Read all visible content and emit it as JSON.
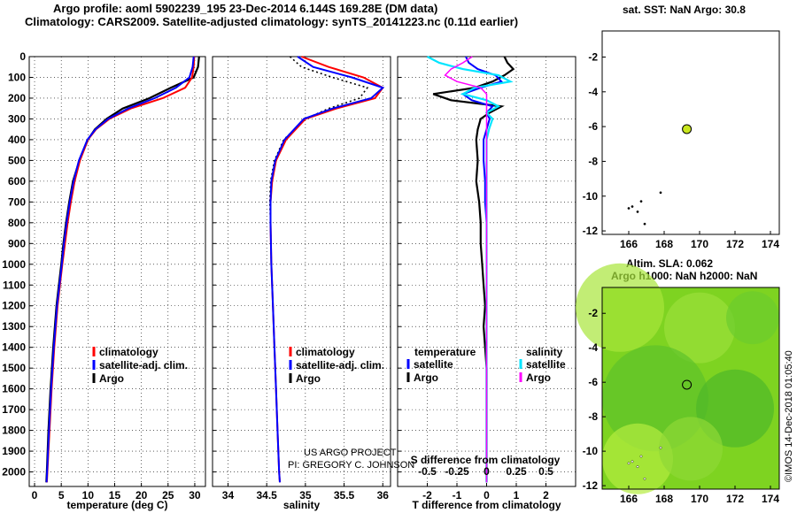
{
  "header": {
    "title_line1": "Argo profile: aoml 5902239_195 23-Dec-2014 6.144S 169.28E (DM data)",
    "title_line2": "Climatology: CARS2009. Satellite-adjusted climatology: synTS_20141223.nc (0.11d earlier)"
  },
  "map_top": {
    "title": "sat. SST: NaN Argo: 30.8",
    "xticks": [
      "166",
      "168",
      "170",
      "172",
      "174"
    ],
    "yticks": [
      "-2",
      "-4",
      "-6",
      "-8",
      "-10",
      "-12"
    ]
  },
  "map_bottom": {
    "title_line1": "Altim. SLA: 0.062",
    "title_line2": "Argo h1000: NaN h2000: NaN",
    "xticks": [
      "166",
      "168",
      "170",
      "172",
      "174"
    ],
    "yticks": [
      "-2",
      "-4",
      "-6",
      "-8",
      "-10",
      "-12"
    ]
  },
  "credit": {
    "line1": "US ARGO PROJECT",
    "line2": "PI: GREGORY C. JOHNSON"
  },
  "watermark": "©IMOS 14-Dec-2018 01:05:40",
  "colors": {
    "climatology": "#ff0000",
    "satellite": "#0000ff",
    "argo": "#000000",
    "salinity_sat": "#00e5ff",
    "salinity_argo": "#ff00ff",
    "map_green": "#7ed321"
  },
  "chart_data": [
    {
      "type": "line",
      "xlabel": "temperature (deg C)",
      "ylabel": "",
      "xlim": [
        -1,
        32
      ],
      "ylim": [
        2070,
        0
      ],
      "xticks": [
        "0",
        "5",
        "10",
        "15",
        "20",
        "25",
        "30"
      ],
      "yticks": [
        "0",
        "100",
        "200",
        "300",
        "400",
        "500",
        "600",
        "700",
        "800",
        "900",
        "1000",
        "1100",
        "1200",
        "1300",
        "1400",
        "1500",
        "1600",
        "1700",
        "1800",
        "1900",
        "2000"
      ],
      "depth": [
        0,
        50,
        100,
        150,
        200,
        250,
        300,
        350,
        400,
        500,
        600,
        700,
        800,
        900,
        1000,
        1200,
        1400,
        1600,
        1800,
        2000,
        2050
      ],
      "series": [
        {
          "name": "climatology",
          "values": [
            29.9,
            29.8,
            29.5,
            28.2,
            24.0,
            18.0,
            14.0,
            11.5,
            10.0,
            8.5,
            7.5,
            6.8,
            6.2,
            5.7,
            5.2,
            4.3,
            3.7,
            3.2,
            2.8,
            2.4,
            2.3
          ]
        },
        {
          "name": "satellite-adj. clim.",
          "values": [
            29.8,
            29.6,
            29.0,
            26.5,
            22.5,
            17.5,
            13.8,
            11.4,
            9.9,
            8.3,
            7.3,
            6.6,
            6.0,
            5.5,
            5.1,
            4.2,
            3.6,
            3.1,
            2.7,
            2.35,
            2.25
          ]
        },
        {
          "name": "Argo",
          "values": [
            30.8,
            30.6,
            29.8,
            25.5,
            21.5,
            16.5,
            13.5,
            11.3,
            10.0,
            8.4,
            7.2,
            6.5,
            5.9,
            5.4,
            5.0,
            4.1,
            3.5,
            3.0,
            2.6,
            2.3,
            2.2
          ]
        }
      ],
      "legend": [
        "climatology",
        "satellite-adj. clim.",
        "Argo"
      ]
    },
    {
      "type": "line",
      "xlabel": "salinity",
      "ylabel": "",
      "xlim": [
        33.8,
        36.1
      ],
      "ylim": [
        2070,
        0
      ],
      "xticks": [
        "34",
        "34.5",
        "35",
        "35.5",
        "36"
      ],
      "depth": [
        0,
        50,
        100,
        150,
        200,
        250,
        300,
        400,
        500,
        600,
        700,
        800,
        1000,
        1200,
        1400,
        1600,
        1800,
        2000,
        2050
      ],
      "series": [
        {
          "name": "climatology",
          "values": [
            34.95,
            35.3,
            35.75,
            36.0,
            35.9,
            35.4,
            35.0,
            34.75,
            34.62,
            34.57,
            34.55,
            34.55,
            34.56,
            34.58,
            34.6,
            34.62,
            34.64,
            34.66,
            34.67
          ]
        },
        {
          "name": "satellite-adj. clim.",
          "values": [
            34.9,
            35.1,
            35.6,
            36.0,
            35.85,
            35.35,
            34.98,
            34.73,
            34.61,
            34.56,
            34.55,
            34.55,
            34.56,
            34.58,
            34.6,
            34.62,
            34.64,
            34.66,
            34.67
          ]
        },
        {
          "name": "Argo",
          "values": [
            34.8,
            34.95,
            35.35,
            35.8,
            35.7,
            35.3,
            35.0,
            34.72,
            34.6,
            34.55,
            34.54,
            34.55,
            34.56,
            34.58,
            34.6,
            34.62,
            34.64,
            34.66,
            34.67
          ]
        }
      ],
      "legend": [
        "climatology",
        "satellite-adj. clim.",
        "Argo"
      ]
    },
    {
      "type": "line",
      "xlabel": "T difference from climatology",
      "xlabel_top": "S difference from climatology",
      "ylabel": "",
      "xlim": [
        -3,
        3
      ],
      "ylim": [
        2070,
        0
      ],
      "xticks": [
        "-2",
        "-1",
        "0",
        "1",
        "2"
      ],
      "xticks_top": [
        "-0.5",
        "-0.25",
        "0",
        "0.25",
        "0.5"
      ],
      "depth": [
        0,
        30,
        60,
        90,
        120,
        150,
        180,
        210,
        240,
        270,
        300,
        350,
        400,
        500,
        600,
        700,
        800,
        900,
        1000,
        1100,
        1200,
        1300,
        1400,
        1500,
        1600,
        1700,
        1800,
        1900,
        2000,
        2050
      ],
      "series": [
        {
          "name": "temperature satellite",
          "values": [
            -0.7,
            -0.6,
            -0.3,
            0.3,
            0.5,
            -0.2,
            -0.8,
            -0.5,
            0.2,
            0.0,
            0.1,
            0.0,
            -0.1,
            -0.1,
            -0.05,
            -0.05,
            0.0,
            0.0,
            0.0,
            0.0,
            0.0,
            0.0,
            0.0,
            0.0,
            0.0,
            0.0,
            0.0,
            0.0,
            0.0,
            0.0
          ]
        },
        {
          "name": "temperature Argo",
          "values": [
            0.6,
            0.7,
            0.9,
            0.6,
            0.2,
            -0.4,
            -1.8,
            -1.2,
            0.5,
            0.1,
            -0.2,
            -0.3,
            -0.35,
            -0.3,
            -0.35,
            -0.25,
            -0.2,
            -0.2,
            -0.15,
            -0.1,
            -0.05,
            -0.1,
            -0.05,
            0.0,
            0.0,
            0.0,
            0.0,
            0.0,
            0.0,
            0.0
          ]
        },
        {
          "name": "salinity satellite",
          "values": [
            -0.5,
            -0.4,
            -0.2,
            0.1,
            0.2,
            -0.1,
            -0.2,
            0.0,
            0.1,
            0.0,
            0.05,
            0.02,
            0.0,
            0.0,
            0.0,
            0.0,
            0.0,
            0.0,
            0.0,
            0.0,
            0.0,
            0.0,
            0.0,
            0.0,
            0.0,
            0.0,
            0.0,
            0.0,
            0.0,
            0.0
          ]
        },
        {
          "name": "salinity Argo",
          "values": [
            -0.12,
            -0.2,
            -0.3,
            -0.35,
            -0.25,
            -0.05,
            0.0,
            0.0,
            0.0,
            0.0,
            0.0,
            0.0,
            0.0,
            0.0,
            0.0,
            0.0,
            0.0,
            0.0,
            0.0,
            0.0,
            0.0,
            0.0,
            0.0,
            0.0,
            0.0,
            0.0,
            0.0,
            0.0,
            0.0,
            0.0
          ]
        }
      ],
      "legend_left_title": "temperature",
      "legend_right_title": "salinity",
      "legend_left": [
        "satellite",
        "Argo"
      ],
      "legend_right": [
        "satellite",
        "Argo"
      ]
    }
  ]
}
